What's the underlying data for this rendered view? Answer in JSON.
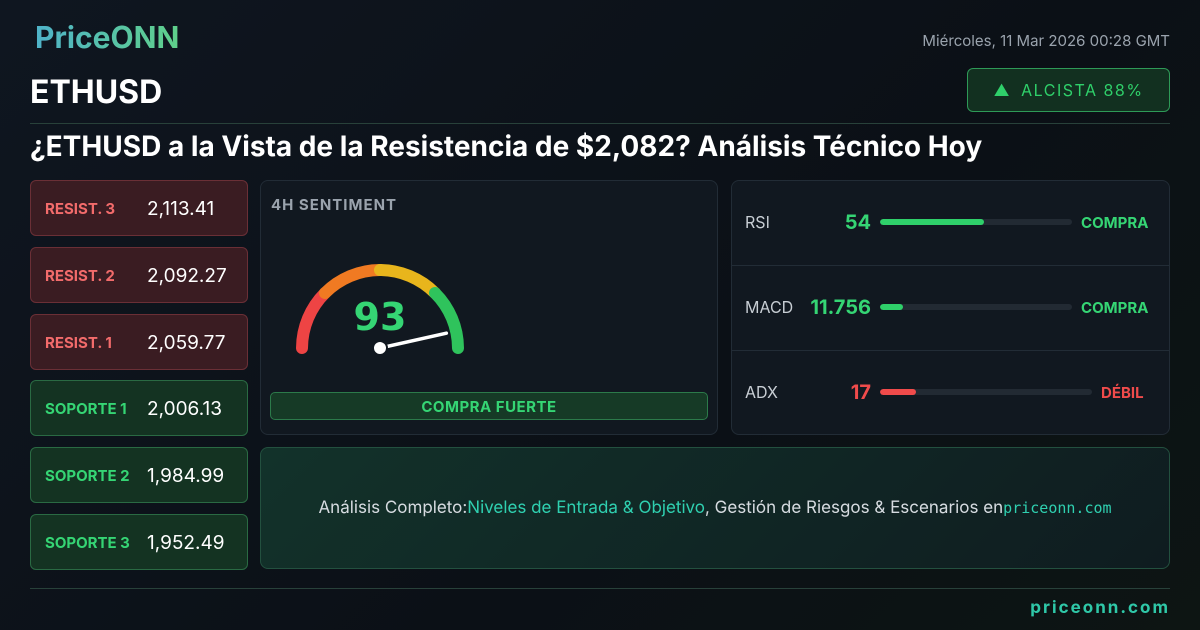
{
  "header": {
    "logo": "PriceONN",
    "date": "Miércoles, 11 Mar 2026 00:28 GMT",
    "symbol": "ETHUSD",
    "badge": "ALCISTA 88%",
    "title": "¿ETHUSD a la Vista de la Resistencia de $2,082? Análisis Técnico Hoy"
  },
  "levels": [
    {
      "label": "RESIST. 3",
      "value": "2,113.41"
    },
    {
      "label": "RESIST. 2",
      "value": "2,092.27"
    },
    {
      "label": "RESIST. 1",
      "value": "2,059.77"
    },
    {
      "label": "SOPORTE 1",
      "value": "2,006.13"
    },
    {
      "label": "SOPORTE 2",
      "value": "1,984.99"
    },
    {
      "label": "SOPORTE 3",
      "value": "1,952.49"
    }
  ],
  "sentiment": {
    "title": "4H SENTIMENT",
    "value": 93,
    "verdict": "COMPRA FUERTE"
  },
  "indicators": [
    {
      "name": "RSI",
      "value": 54,
      "signal": "COMPRA"
    },
    {
      "name": "MACD",
      "value": 11.756,
      "signal": "COMPRA"
    },
    {
      "name": "ADX",
      "value": 17,
      "signal": "DÉBIL"
    }
  ],
  "cta": {
    "prefix": "Análisis Completo:",
    "highlight": "Niveles de Entrada & Objetivo",
    "suffix": ", Gestión de Riesgos & Escenarios en",
    "site": "priceonn.com"
  },
  "footer": {
    "url": "priceonn.com"
  }
}
